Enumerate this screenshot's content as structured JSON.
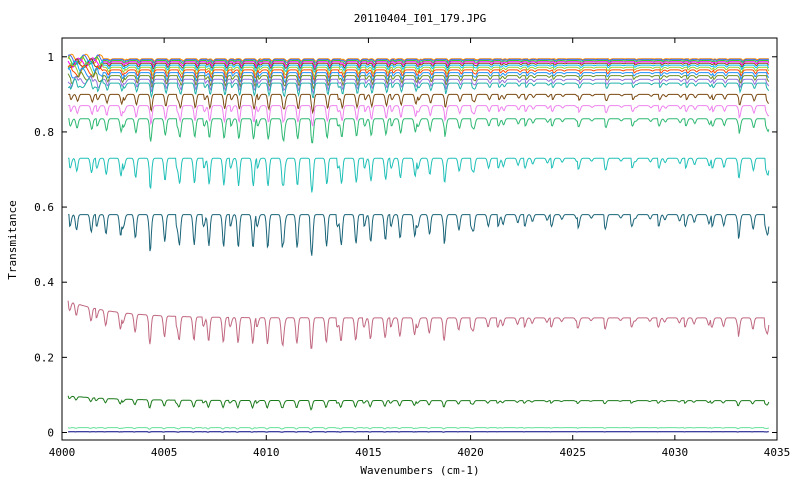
{
  "chart_data": {
    "type": "line",
    "title": "20110404_I01_179.JPG",
    "xlabel": "Wavenumbers (cm-1)",
    "ylabel": "Transmitance",
    "xlim": [
      4000,
      4035
    ],
    "ylim": [
      -0.02,
      1.05
    ],
    "x_ticks": [
      4000,
      4005,
      4010,
      4015,
      4020,
      4025,
      4030,
      4035
    ],
    "y_ticks": [
      0,
      0.2,
      0.4,
      0.6,
      0.8,
      1
    ],
    "x_tick_labels": [
      "4000",
      "4005",
      "4010",
      "4015",
      "4020",
      "4025",
      "4030",
      "4035"
    ],
    "y_tick_labels": [
      "0",
      "0.2",
      "0.4",
      "0.6",
      "0.8",
      "1"
    ],
    "grid": false,
    "legend": "none",
    "line_window": [
      4000.3,
      4034.6
    ],
    "series": [
      {
        "level": 0.995,
        "depth": 0.006,
        "color": "#ff8c00"
      },
      {
        "level": 0.993,
        "depth": 0.008,
        "color": "#4169e1"
      },
      {
        "level": 0.99,
        "depth": 0.01,
        "color": "#32cd32"
      },
      {
        "level": 0.987,
        "depth": 0.012,
        "color": "#ff00ff"
      },
      {
        "level": 0.983,
        "depth": 0.014,
        "color": "#8b4513"
      },
      {
        "level": 0.978,
        "depth": 0.016,
        "color": "#00bfff"
      },
      {
        "level": 0.972,
        "depth": 0.02,
        "color": "#9acd32"
      },
      {
        "level": 0.965,
        "depth": 0.022,
        "color": "#ff4500"
      },
      {
        "level": 0.958,
        "depth": 0.025,
        "color": "#1e90ff"
      },
      {
        "level": 0.95,
        "depth": 0.028,
        "color": "#6b8e23"
      },
      {
        "level": 0.94,
        "depth": 0.03,
        "color": "#9370db"
      },
      {
        "level": 0.93,
        "depth": 0.033,
        "color": "#20b2aa"
      },
      {
        "level": 0.9,
        "depth": 0.04,
        "color": "#7b4a12"
      },
      {
        "level": 0.87,
        "depth": 0.045,
        "color": "#ee82ee"
      },
      {
        "level": 0.835,
        "depth": 0.055,
        "color": "#2eb872"
      },
      {
        "level": 0.73,
        "depth": 0.075,
        "color": "#20c0b8"
      },
      {
        "level": 0.58,
        "depth": 0.09,
        "color": "#1a6478"
      },
      {
        "level": 0.305,
        "depth": 0.07,
        "color": "#c06880"
      },
      {
        "level": 0.085,
        "depth": 0.02,
        "color": "#1a7a1a"
      },
      {
        "level": 0.013,
        "depth": 0.004,
        "color": "#66e09a"
      },
      {
        "level": 0.002,
        "depth": 0.001,
        "color": "#000080"
      }
    ]
  }
}
